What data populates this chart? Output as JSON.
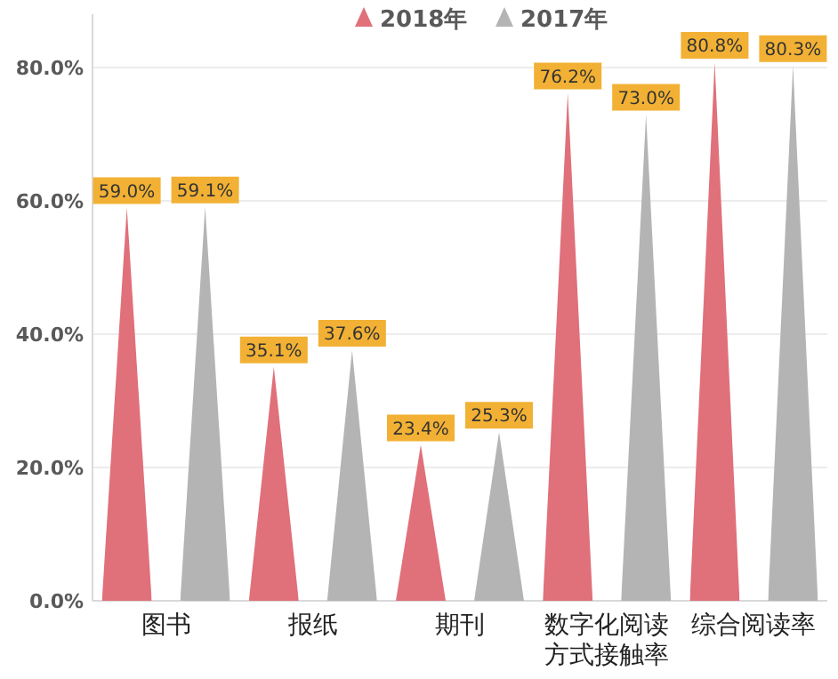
{
  "chart_data": {
    "type": "bar",
    "categories": [
      "图书",
      "报纸",
      "期刊",
      "数字化阅读方式接触率",
      "综合阅读率"
    ],
    "series": [
      {
        "name": "2018年",
        "color": "#e0707a",
        "values": [
          59.0,
          35.1,
          23.4,
          76.2,
          80.8
        ],
        "value_labels": [
          "59.0%",
          "35.1%",
          "23.4%",
          "76.2%",
          "80.8%"
        ]
      },
      {
        "name": "2017年",
        "color": "#b4b4b4",
        "values": [
          59.1,
          37.6,
          25.3,
          73.0,
          80.3
        ],
        "value_labels": [
          "59.1%",
          "37.6%",
          "25.3%",
          "73.0%",
          "80.3%"
        ]
      }
    ],
    "ylim": [
      0,
      88
    ],
    "yticks": [
      {
        "value": 0,
        "label": "0.0%"
      },
      {
        "value": 20,
        "label": "20.0%"
      },
      {
        "value": 40,
        "label": "40.0%"
      },
      {
        "value": 60,
        "label": "60.0%"
      },
      {
        "value": 80,
        "label": "80.0%"
      }
    ],
    "grid": "y",
    "legend": "top"
  }
}
